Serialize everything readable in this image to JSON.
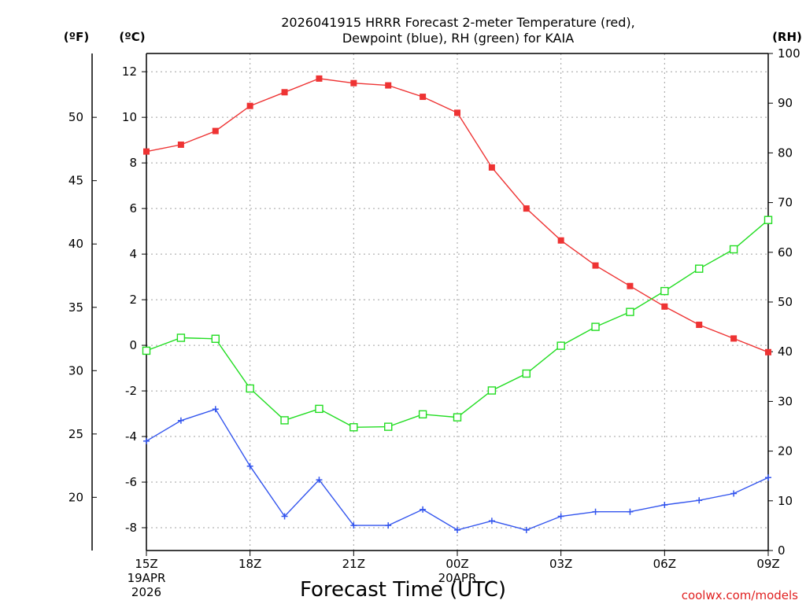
{
  "chart_data": {
    "type": "line",
    "title_line1": "2026041915 HRRR Forecast 2-meter Temperature (red),",
    "title_line2": "Dewpoint (blue), RH (green) for KAIA",
    "units": {
      "fahrenheit": "(ºF)",
      "celsius": "(ºC)",
      "rh": "(RH)"
    },
    "xlabel": "Forecast Time (UTC)",
    "credit": "coolwx.com/models",
    "x_hours": [
      15,
      16,
      17,
      18,
      19,
      20,
      21,
      22,
      23,
      24,
      25,
      26,
      27,
      28,
      29,
      30,
      31,
      32,
      33
    ],
    "x_ticks": [
      {
        "hour": 15,
        "label": "15Z"
      },
      {
        "hour": 18,
        "label": "18Z"
      },
      {
        "hour": 21,
        "label": "21Z"
      },
      {
        "hour": 24,
        "label": "00Z"
      },
      {
        "hour": 27,
        "label": "03Z"
      },
      {
        "hour": 30,
        "label": "06Z"
      },
      {
        "hour": 33,
        "label": "09Z"
      }
    ],
    "date_labels": [
      {
        "hour": 15,
        "line1": "19APR",
        "line2": "2026"
      },
      {
        "hour": 24,
        "line1": "20APR",
        "line2": ""
      }
    ],
    "c_axis": {
      "min": -9,
      "max": 12.8,
      "ticks": [
        -8,
        -6,
        -4,
        -2,
        0,
        2,
        4,
        6,
        8,
        10,
        12
      ]
    },
    "f_axis": {
      "ticks": [
        20,
        25,
        30,
        35,
        40,
        45,
        50
      ]
    },
    "rh_axis": {
      "min": 0,
      "max": 100,
      "ticks": [
        0,
        10,
        20,
        30,
        40,
        50,
        60,
        70,
        80,
        90,
        100
      ]
    },
    "series": [
      {
        "name": "Temperature",
        "color": "#ee3333",
        "marker": "filled-square",
        "axis": "celsius",
        "values": [
          8.5,
          8.8,
          9.4,
          10.5,
          11.1,
          11.7,
          11.5,
          11.4,
          10.9,
          10.2,
          7.8,
          6.0,
          4.6,
          3.5,
          2.6,
          1.7,
          0.9,
          0.3,
          -0.3
        ]
      },
      {
        "name": "Dewpoint",
        "color": "#3355ee",
        "marker": "plus",
        "axis": "celsius",
        "values": [
          -4.2,
          -3.3,
          -2.8,
          -5.3,
          -7.5,
          -5.9,
          -7.9,
          -7.9,
          -7.2,
          -8.1,
          -7.7,
          -8.1,
          -7.5,
          -7.3,
          -7.3,
          -7.0,
          -6.8,
          -6.5,
          -5.8
        ]
      },
      {
        "name": "RH",
        "color": "#22dd22",
        "marker": "open-square",
        "axis": "rh",
        "values": [
          40.2,
          42.8,
          42.6,
          32.6,
          26.2,
          28.5,
          24.8,
          24.9,
          27.4,
          26.8,
          32.2,
          35.6,
          41.2,
          45.0,
          48.0,
          52.2,
          56.7,
          60.6,
          66.5
        ]
      }
    ]
  }
}
